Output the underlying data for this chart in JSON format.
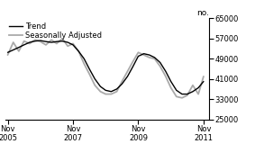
{
  "ylabel_right": "no.",
  "ylim": [
    25000,
    65000
  ],
  "yticks": [
    25000,
    33000,
    41000,
    49000,
    57000,
    65000
  ],
  "xlim_start": 2005.75,
  "xlim_end": 2012.0,
  "xtick_positions": [
    2005.83,
    2007.83,
    2009.83,
    2011.83
  ],
  "xtick_labels": [
    "Nov\n2005",
    "Nov\n2007",
    "Nov\n2009",
    "Nov\n2011"
  ],
  "legend_entries": [
    "Trend",
    "Seasonally Adjusted"
  ],
  "trend_color": "#000000",
  "seasonal_color": "#aaaaaa",
  "trend_linewidth": 1.0,
  "seasonal_linewidth": 1.3,
  "background_color": "#ffffff",
  "trend_data": {
    "x": [
      2005.83,
      2006.0,
      2006.17,
      2006.33,
      2006.5,
      2006.67,
      2006.83,
      2007.0,
      2007.17,
      2007.33,
      2007.5,
      2007.67,
      2007.83,
      2008.0,
      2008.17,
      2008.33,
      2008.5,
      2008.67,
      2008.83,
      2009.0,
      2009.17,
      2009.33,
      2009.5,
      2009.67,
      2009.83,
      2010.0,
      2010.17,
      2010.33,
      2010.5,
      2010.67,
      2010.83,
      2011.0,
      2011.17,
      2011.33,
      2011.5,
      2011.67,
      2011.83
    ],
    "y": [
      51500,
      52500,
      53500,
      54500,
      55500,
      56000,
      56200,
      55800,
      55500,
      55800,
      56000,
      55500,
      54500,
      52000,
      49000,
      45000,
      41000,
      38000,
      36500,
      36000,
      37000,
      39000,
      42000,
      46000,
      50000,
      51000,
      50500,
      49500,
      47500,
      44000,
      40000,
      36500,
      35000,
      35000,
      36000,
      37500,
      40000
    ]
  },
  "seasonal_data": {
    "x": [
      2005.83,
      2006.0,
      2006.17,
      2006.33,
      2006.5,
      2006.67,
      2006.83,
      2007.0,
      2007.17,
      2007.33,
      2007.5,
      2007.67,
      2007.83,
      2008.0,
      2008.17,
      2008.33,
      2008.5,
      2008.67,
      2008.83,
      2009.0,
      2009.17,
      2009.33,
      2009.5,
      2009.67,
      2009.83,
      2010.0,
      2010.17,
      2010.33,
      2010.5,
      2010.67,
      2010.83,
      2011.0,
      2011.17,
      2011.33,
      2011.5,
      2011.67,
      2011.83
    ],
    "y": [
      50500,
      55500,
      52000,
      56000,
      55000,
      56500,
      55800,
      54500,
      56500,
      55000,
      57000,
      54000,
      55000,
      52000,
      47000,
      43000,
      38500,
      36000,
      35000,
      35000,
      36000,
      40000,
      44000,
      48000,
      51500,
      50500,
      49500,
      49000,
      46000,
      42000,
      37500,
      34000,
      33500,
      34500,
      38500,
      35000,
      42000
    ]
  }
}
